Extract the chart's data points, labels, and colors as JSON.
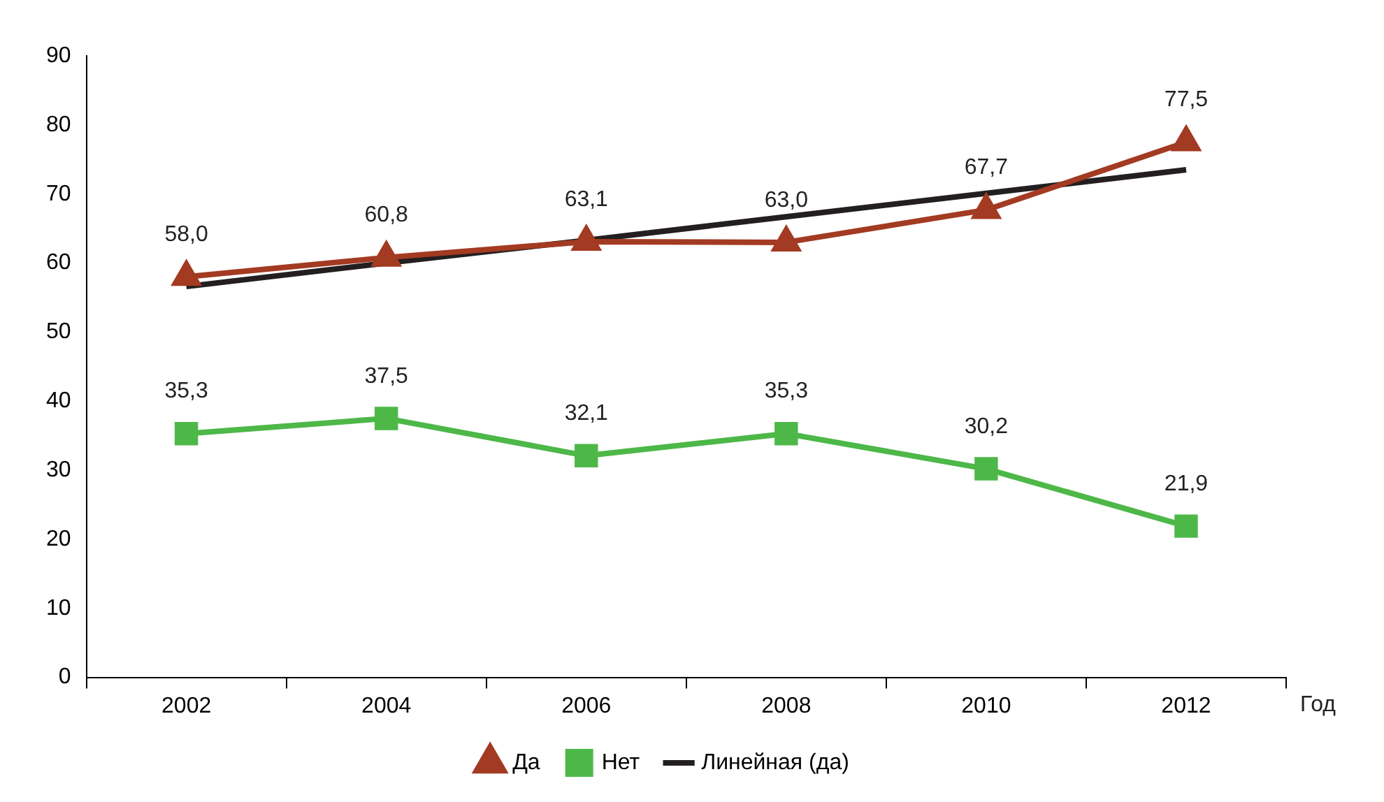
{
  "chart_data": {
    "type": "line",
    "xlabel": "Год",
    "categories": [
      "2002",
      "2004",
      "2006",
      "2008",
      "2010",
      "2012"
    ],
    "series": [
      {
        "name": "Да",
        "color": "#a33a22",
        "marker": "triangle",
        "values": [
          58.0,
          60.8,
          63.1,
          63.0,
          67.7,
          77.5
        ],
        "value_labels": [
          "58,0",
          "60,8",
          "63,1",
          "63,0",
          "67,7",
          "77,5"
        ]
      },
      {
        "name": "Нет",
        "color": "#4db848",
        "marker": "square",
        "values": [
          35.3,
          37.5,
          32.1,
          35.3,
          30.2,
          21.9
        ],
        "value_labels": [
          "35,3",
          "37,5",
          "32,1",
          "35,3",
          "30,2",
          "21,9"
        ]
      },
      {
        "name": "Линейная (да)",
        "color": "#231f20",
        "marker": "none",
        "values": [
          56.6,
          60.0,
          63.3,
          66.7,
          70.1,
          73.5
        ]
      }
    ],
    "ylim": [
      0,
      90
    ],
    "yticks": [
      0,
      10,
      20,
      30,
      40,
      50,
      60,
      70,
      80,
      90
    ],
    "grid": false,
    "legend": "bottom",
    "line_style": "solid"
  }
}
